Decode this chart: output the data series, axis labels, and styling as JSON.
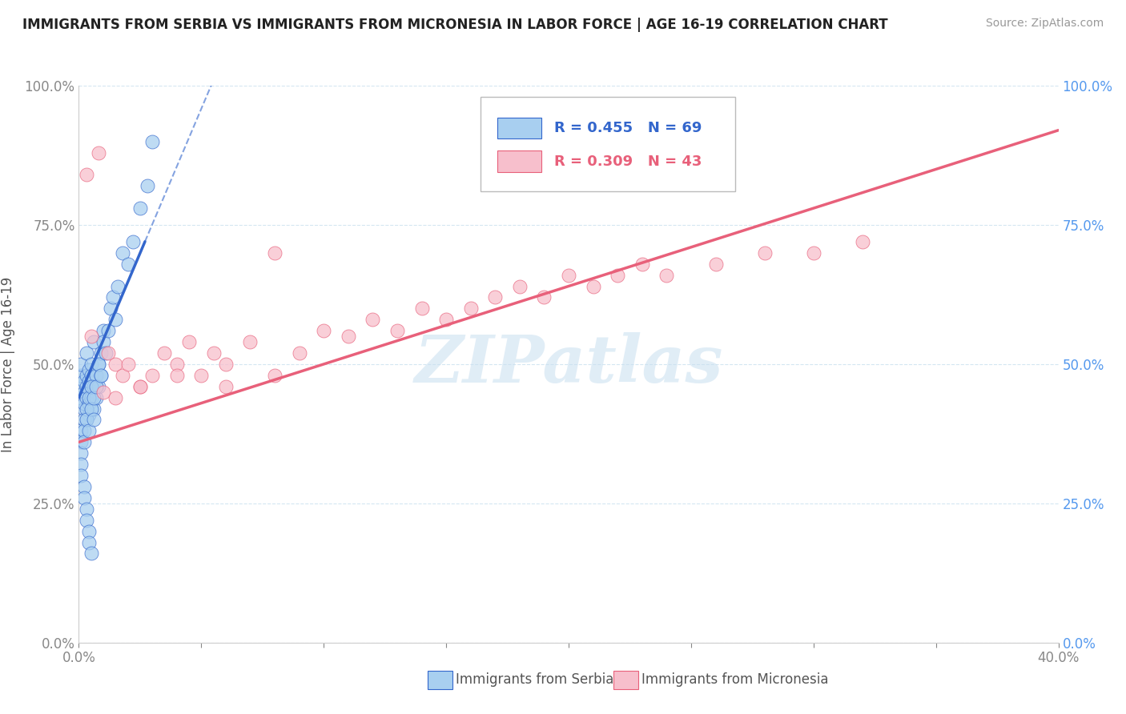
{
  "title": "IMMIGRANTS FROM SERBIA VS IMMIGRANTS FROM MICRONESIA IN LABOR FORCE | AGE 16-19 CORRELATION CHART",
  "source": "Source: ZipAtlas.com",
  "ylabel": "In Labor Force | Age 16-19",
  "legend_label1": "Immigrants from Serbia",
  "legend_label2": "Immigrants from Micronesia",
  "R1": 0.455,
  "N1": 69,
  "R2": 0.309,
  "N2": 43,
  "xlim": [
    0.0,
    0.4
  ],
  "ylim": [
    0.0,
    1.0
  ],
  "xticks": [
    0.0,
    0.05,
    0.1,
    0.15,
    0.2,
    0.25,
    0.3,
    0.35,
    0.4
  ],
  "yticks": [
    0.0,
    0.25,
    0.5,
    0.75,
    1.0
  ],
  "xticklabels_show": [
    "0.0%",
    "",
    "",
    "",
    "",
    "",
    "",
    "",
    "40.0%"
  ],
  "yticklabels_left": [
    "0.0%",
    "25.0%",
    "50.0%",
    "75.0%",
    "100.0%"
  ],
  "yticklabels_right": [
    "0.0%",
    "25.0%",
    "50.0%",
    "75.0%",
    "100.0%"
  ],
  "color_serbia": "#a8cff0",
  "color_micronesia": "#f7bfcc",
  "trendline_color_serbia": "#3366cc",
  "trendline_color_micronesia": "#e8607a",
  "watermark": "ZIPatlas",
  "grid_color": "#d0e4f0",
  "serbia_x": [
    0.001,
    0.001,
    0.001,
    0.001,
    0.002,
    0.002,
    0.002,
    0.002,
    0.003,
    0.003,
    0.003,
    0.003,
    0.003,
    0.004,
    0.004,
    0.004,
    0.004,
    0.005,
    0.005,
    0.005,
    0.006,
    0.006,
    0.006,
    0.007,
    0.007,
    0.008,
    0.008,
    0.009,
    0.009,
    0.01,
    0.001,
    0.001,
    0.001,
    0.002,
    0.002,
    0.002,
    0.003,
    0.003,
    0.004,
    0.004,
    0.005,
    0.005,
    0.006,
    0.006,
    0.007,
    0.008,
    0.009,
    0.01,
    0.011,
    0.012,
    0.013,
    0.014,
    0.015,
    0.016,
    0.018,
    0.02,
    0.022,
    0.025,
    0.028,
    0.03,
    0.001,
    0.001,
    0.002,
    0.002,
    0.003,
    0.003,
    0.004,
    0.004,
    0.005
  ],
  "serbia_y": [
    0.46,
    0.48,
    0.44,
    0.5,
    0.42,
    0.45,
    0.47,
    0.43,
    0.48,
    0.44,
    0.46,
    0.4,
    0.52,
    0.47,
    0.43,
    0.49,
    0.41,
    0.48,
    0.44,
    0.5,
    0.46,
    0.42,
    0.54,
    0.48,
    0.44,
    0.5,
    0.46,
    0.52,
    0.48,
    0.56,
    0.38,
    0.36,
    0.34,
    0.4,
    0.38,
    0.36,
    0.42,
    0.4,
    0.38,
    0.44,
    0.42,
    0.46,
    0.44,
    0.4,
    0.46,
    0.5,
    0.48,
    0.54,
    0.52,
    0.56,
    0.6,
    0.62,
    0.58,
    0.64,
    0.7,
    0.68,
    0.72,
    0.78,
    0.82,
    0.9,
    0.32,
    0.3,
    0.28,
    0.26,
    0.24,
    0.22,
    0.2,
    0.18,
    0.16
  ],
  "micronesia_x": [
    0.003,
    0.005,
    0.008,
    0.01,
    0.012,
    0.015,
    0.018,
    0.02,
    0.025,
    0.03,
    0.035,
    0.04,
    0.045,
    0.05,
    0.055,
    0.06,
    0.07,
    0.08,
    0.09,
    0.1,
    0.11,
    0.12,
    0.13,
    0.14,
    0.15,
    0.16,
    0.17,
    0.18,
    0.19,
    0.2,
    0.21,
    0.22,
    0.23,
    0.24,
    0.26,
    0.28,
    0.3,
    0.32,
    0.015,
    0.025,
    0.04,
    0.06,
    0.08
  ],
  "micronesia_y": [
    0.84,
    0.55,
    0.88,
    0.45,
    0.52,
    0.5,
    0.48,
    0.5,
    0.46,
    0.48,
    0.52,
    0.5,
    0.54,
    0.48,
    0.52,
    0.5,
    0.54,
    0.48,
    0.52,
    0.56,
    0.55,
    0.58,
    0.56,
    0.6,
    0.58,
    0.6,
    0.62,
    0.64,
    0.62,
    0.66,
    0.64,
    0.66,
    0.68,
    0.66,
    0.68,
    0.7,
    0.7,
    0.72,
    0.44,
    0.46,
    0.48,
    0.46,
    0.7
  ],
  "trendline_serbia_x0": 0.0,
  "trendline_serbia_y0": 0.44,
  "trendline_serbia_x1": 0.027,
  "trendline_serbia_y1": 0.72,
  "trendline_micro_x0": 0.0,
  "trendline_micro_y0": 0.36,
  "trendline_micro_x1": 0.4,
  "trendline_micro_y1": 0.92
}
